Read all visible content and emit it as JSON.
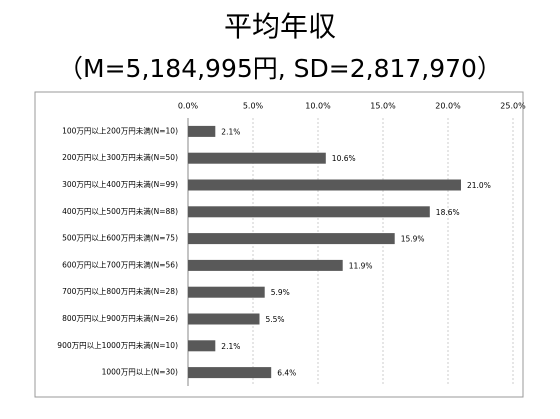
{
  "chart_data": {
    "type": "bar",
    "orientation": "horizontal",
    "title": "平均年収",
    "subtitle": "（M=5,184,995円, SD=2,817,970）",
    "categories": [
      "100万円以上200万円未満(N=10)",
      "200万円以上300万円未満(N=50)",
      "300万円以上400万円未満(N=99)",
      "400万円以上500万円未満(N=88)",
      "500万円以上600万円未満(N=75)",
      "600万円以上700万円未満(N=56)",
      "700万円以上800万円未満(N=28)",
      "800万円以上900万円未満(N=26)",
      "900万円以上1000万円未満(N=10)",
      "1000万円以上(N=30)"
    ],
    "values": [
      2.1,
      10.6,
      21.0,
      18.6,
      15.9,
      11.9,
      5.9,
      5.5,
      2.1,
      6.4
    ],
    "value_labels": [
      "2.1%",
      "10.6%",
      "21.0%",
      "18.6%",
      "15.9%",
      "11.9%",
      "5.9%",
      "5.5%",
      "2.1%",
      "6.4%"
    ],
    "color": "#595959",
    "xlim": [
      0,
      25
    ],
    "xticks": [
      {
        "value": 0,
        "label": "0.0%"
      },
      {
        "value": 5,
        "label": "5.0%"
      },
      {
        "value": 10,
        "label": "10.0%"
      },
      {
        "value": 15,
        "label": "15.0%"
      },
      {
        "value": 20,
        "label": "20.0%"
      },
      {
        "value": 25,
        "label": "25.0%"
      }
    ],
    "grid": true
  }
}
